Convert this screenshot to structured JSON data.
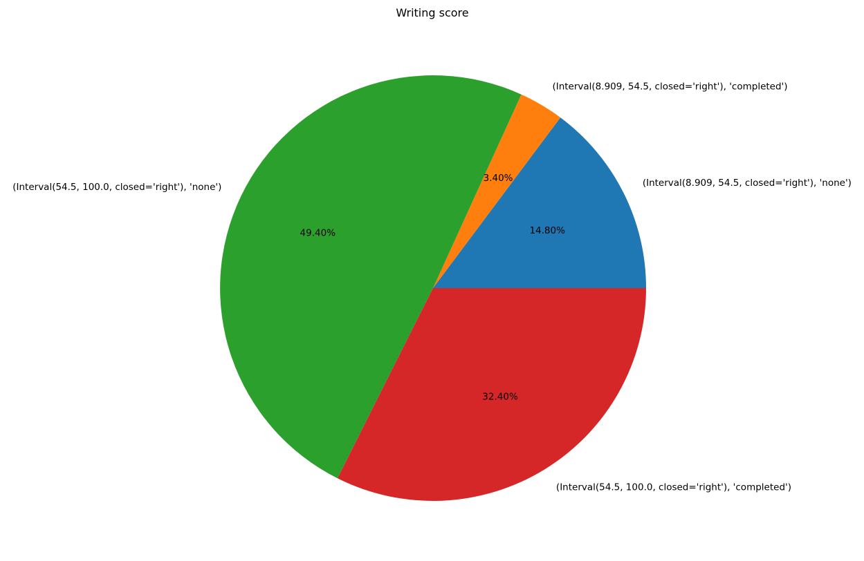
{
  "chart_data": {
    "type": "pie",
    "title": "Writing score",
    "start_angle_deg": 0,
    "direction": "counterclockwise",
    "legend": "none",
    "slices": [
      {
        "label": "(Interval(8.909, 54.5, closed='right'), 'none')",
        "value": 14.8,
        "pct_text": "14.80%",
        "color": "#1f77b4"
      },
      {
        "label": "(Interval(8.909, 54.5, closed='right'), 'completed')",
        "value": 3.4,
        "pct_text": "3.40%",
        "color": "#ff7f0e"
      },
      {
        "label": "(Interval(54.5, 100.0, closed='right'), 'none')",
        "value": 49.4,
        "pct_text": "49.40%",
        "color": "#2ca02c"
      },
      {
        "label": "(Interval(54.5, 100.0, closed='right'), 'completed')",
        "value": 32.4,
        "pct_text": "32.40%",
        "color": "#d62728"
      }
    ]
  }
}
